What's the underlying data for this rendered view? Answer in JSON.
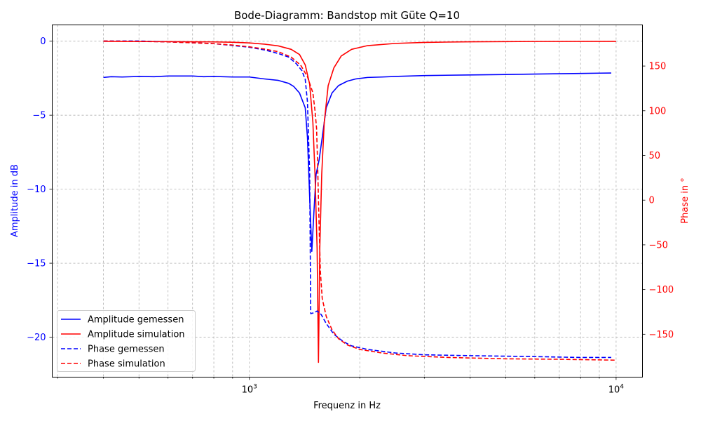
{
  "chart_data": {
    "type": "line",
    "title": "Bode-Diagramm: Bandstop mit Güte Q=10",
    "xlabel": "Frequenz in Hz",
    "ylabel_left": "Amplitude in dB",
    "ylabel_right": "Phase in °",
    "x_scale": "log",
    "xlim": [
      290,
      11800
    ],
    "ylim_left": [
      -22.7,
      1.1
    ],
    "ylim_right": [
      -198,
      196
    ],
    "grid": true,
    "legend_position": "lower-left",
    "x_ticks": [
      {
        "value": 1000,
        "base": "10",
        "exp": "3"
      },
      {
        "value": 10000,
        "base": "10",
        "exp": "4"
      }
    ],
    "y_ticks_left": [
      {
        "value": 0,
        "label": "0"
      },
      {
        "value": -5,
        "label": "−5"
      },
      {
        "value": -10,
        "label": "−10"
      },
      {
        "value": -15,
        "label": "−15"
      },
      {
        "value": -20,
        "label": "−20"
      }
    ],
    "y_ticks_right": [
      {
        "value": 150,
        "label": "150"
      },
      {
        "value": 100,
        "label": "100"
      },
      {
        "value": 50,
        "label": "50"
      },
      {
        "value": 0,
        "label": "0"
      },
      {
        "value": -50,
        "label": "−50"
      },
      {
        "value": -100,
        "label": "−100"
      },
      {
        "value": -150,
        "label": "−150"
      }
    ],
    "colors": {
      "left_axis": "#0000ff",
      "right_axis": "#ff0000"
    },
    "series": [
      {
        "name": "Amplitude gemessen",
        "axis": "left",
        "color": "#0000ff",
        "dash": "solid",
        "points": [
          [
            400,
            -2.45
          ],
          [
            420,
            -2.4
          ],
          [
            450,
            -2.42
          ],
          [
            500,
            -2.38
          ],
          [
            550,
            -2.4
          ],
          [
            600,
            -2.35
          ],
          [
            700,
            -2.35
          ],
          [
            750,
            -2.4
          ],
          [
            800,
            -2.38
          ],
          [
            900,
            -2.42
          ],
          [
            1000,
            -2.42
          ],
          [
            1100,
            -2.55
          ],
          [
            1200,
            -2.65
          ],
          [
            1280,
            -2.85
          ],
          [
            1320,
            -3.05
          ],
          [
            1370,
            -3.5
          ],
          [
            1420,
            -4.5
          ],
          [
            1440,
            -6.5
          ],
          [
            1460,
            -10.5
          ],
          [
            1480,
            -14.2
          ],
          [
            1500,
            -11.5
          ],
          [
            1520,
            -9.0
          ],
          [
            1550,
            -8.0
          ],
          [
            1580,
            -6.5
          ],
          [
            1620,
            -4.5
          ],
          [
            1680,
            -3.5
          ],
          [
            1750,
            -3.0
          ],
          [
            1850,
            -2.7
          ],
          [
            1950,
            -2.55
          ],
          [
            2100,
            -2.45
          ],
          [
            2300,
            -2.42
          ],
          [
            2500,
            -2.38
          ],
          [
            3000,
            -2.32
          ],
          [
            4000,
            -2.28
          ],
          [
            5000,
            -2.25
          ],
          [
            6000,
            -2.22
          ],
          [
            7000,
            -2.2
          ],
          [
            8000,
            -2.18
          ],
          [
            9000,
            -2.16
          ],
          [
            9700,
            -2.15
          ]
        ]
      },
      {
        "name": "Amplitude simulation",
        "axis": "left",
        "color": "#ff0000",
        "dash": "solid",
        "points": [
          [
            400,
            -0.01
          ],
          [
            500,
            -0.02
          ],
          [
            600,
            -0.03
          ],
          [
            700,
            -0.04
          ],
          [
            800,
            -0.05
          ],
          [
            900,
            -0.07
          ],
          [
            1000,
            -0.12
          ],
          [
            1100,
            -0.2
          ],
          [
            1200,
            -0.32
          ],
          [
            1300,
            -0.55
          ],
          [
            1370,
            -0.9
          ],
          [
            1420,
            -1.6
          ],
          [
            1460,
            -2.9
          ],
          [
            1490,
            -5.5
          ],
          [
            1510,
            -9.0
          ],
          [
            1530,
            -14.0
          ],
          [
            1543,
            -21.7
          ],
          [
            1556,
            -14.0
          ],
          [
            1575,
            -9.0
          ],
          [
            1600,
            -5.5
          ],
          [
            1640,
            -3.0
          ],
          [
            1700,
            -1.8
          ],
          [
            1780,
            -1.0
          ],
          [
            1900,
            -0.55
          ],
          [
            2100,
            -0.3
          ],
          [
            2500,
            -0.15
          ],
          [
            3000,
            -0.08
          ],
          [
            4000,
            -0.04
          ],
          [
            6000,
            -0.02
          ],
          [
            10000,
            -0.01
          ]
        ]
      },
      {
        "name": "Phase gemessen",
        "axis": "right",
        "color": "#0000ff",
        "dash": "dashed",
        "points": [
          [
            400,
            178
          ],
          [
            500,
            178
          ],
          [
            600,
            177
          ],
          [
            700,
            176
          ],
          [
            800,
            175
          ],
          [
            900,
            173
          ],
          [
            1000,
            171
          ],
          [
            1100,
            168
          ],
          [
            1200,
            164
          ],
          [
            1280,
            160
          ],
          [
            1340,
            153
          ],
          [
            1390,
            145
          ],
          [
            1420,
            135
          ],
          [
            1440,
            110
          ],
          [
            1460,
            30
          ],
          [
            1470,
            -127
          ],
          [
            1500,
            -126
          ],
          [
            1530,
            -124
          ],
          [
            1570,
            -128
          ],
          [
            1620,
            -138
          ],
          [
            1700,
            -150
          ],
          [
            1800,
            -158
          ],
          [
            1900,
            -163
          ],
          [
            2100,
            -167
          ],
          [
            2500,
            -171
          ],
          [
            3000,
            -173
          ],
          [
            4000,
            -174
          ],
          [
            6000,
            -175
          ],
          [
            8000,
            -176
          ],
          [
            9700,
            -176
          ]
        ]
      },
      {
        "name": "Phase simulation",
        "axis": "right",
        "color": "#ff0000",
        "dash": "dashed",
        "points": [
          [
            400,
            178
          ],
          [
            500,
            177.5
          ],
          [
            600,
            177
          ],
          [
            700,
            176
          ],
          [
            800,
            175
          ],
          [
            900,
            173.5
          ],
          [
            1000,
            171.5
          ],
          [
            1100,
            169
          ],
          [
            1200,
            166
          ],
          [
            1300,
            160
          ],
          [
            1380,
            151
          ],
          [
            1440,
            138
          ],
          [
            1490,
            120
          ],
          [
            1510,
            100
          ],
          [
            1525,
            80
          ],
          [
            1535,
            40
          ],
          [
            1543,
            0
          ],
          [
            1552,
            -40
          ],
          [
            1562,
            -80
          ],
          [
            1580,
            -110
          ],
          [
            1620,
            -130
          ],
          [
            1680,
            -145
          ],
          [
            1750,
            -155
          ],
          [
            1850,
            -162
          ],
          [
            2000,
            -167
          ],
          [
            2300,
            -171
          ],
          [
            2700,
            -174
          ],
          [
            3500,
            -176
          ],
          [
            5000,
            -177.5
          ],
          [
            7000,
            -178
          ],
          [
            10000,
            -179
          ]
        ]
      }
    ]
  }
}
